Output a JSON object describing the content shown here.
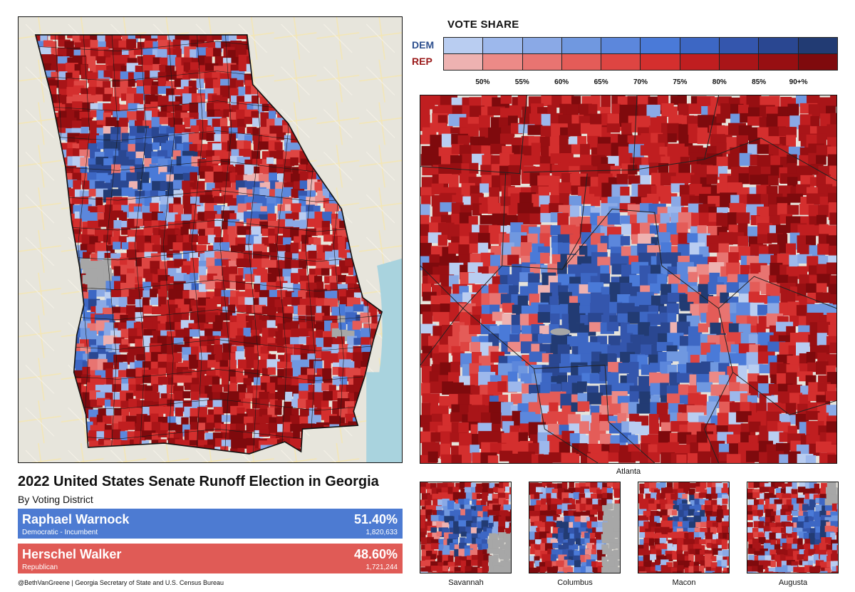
{
  "legend": {
    "title": "VOTE SHARE",
    "dem_label": "DEM",
    "rep_label": "REP",
    "dem_colors": [
      "#b9cdf1",
      "#9db8ec",
      "#8aa9e6",
      "#7098e0",
      "#5c87dc",
      "#4a7ad8",
      "#3d67c4",
      "#3456ad",
      "#2a4791",
      "#223b73"
    ],
    "rep_colors": [
      "#eeb2b1",
      "#ec8a87",
      "#e87471",
      "#e45c58",
      "#de4542",
      "#d42f2e",
      "#c01e20",
      "#a91518",
      "#970f12",
      "#7f0a0d"
    ],
    "ticks": [
      "50%",
      "55%",
      "60%",
      "65%",
      "70%",
      "75%",
      "80%",
      "85%",
      "90+%"
    ]
  },
  "title": "2022 United States Senate Runoff Election in Georgia",
  "subtitle": "By Voting District",
  "candidates": [
    {
      "name": "Raphael Warnock",
      "desc": "Democratic - Incumbent",
      "pct": "51.40%",
      "votes": "1,820,633",
      "color": "#4d7bd2"
    },
    {
      "name": "Herschel Walker",
      "desc": "Republican",
      "pct": "48.60%",
      "votes": "1,721,244",
      "color": "#e05b56"
    }
  ],
  "captions": {
    "atlanta": "Atlanta",
    "savannah": "Savannah",
    "columbus": "Columbus",
    "macon": "Macon",
    "augusta": "Augusta"
  },
  "credit": "@BethVanGreene | Georgia Secretary of State and U.S. Census Bureau",
  "colors": {
    "water": "#a9d3de",
    "land": "#e6e4dc",
    "no_data": "#a7a7a7"
  }
}
